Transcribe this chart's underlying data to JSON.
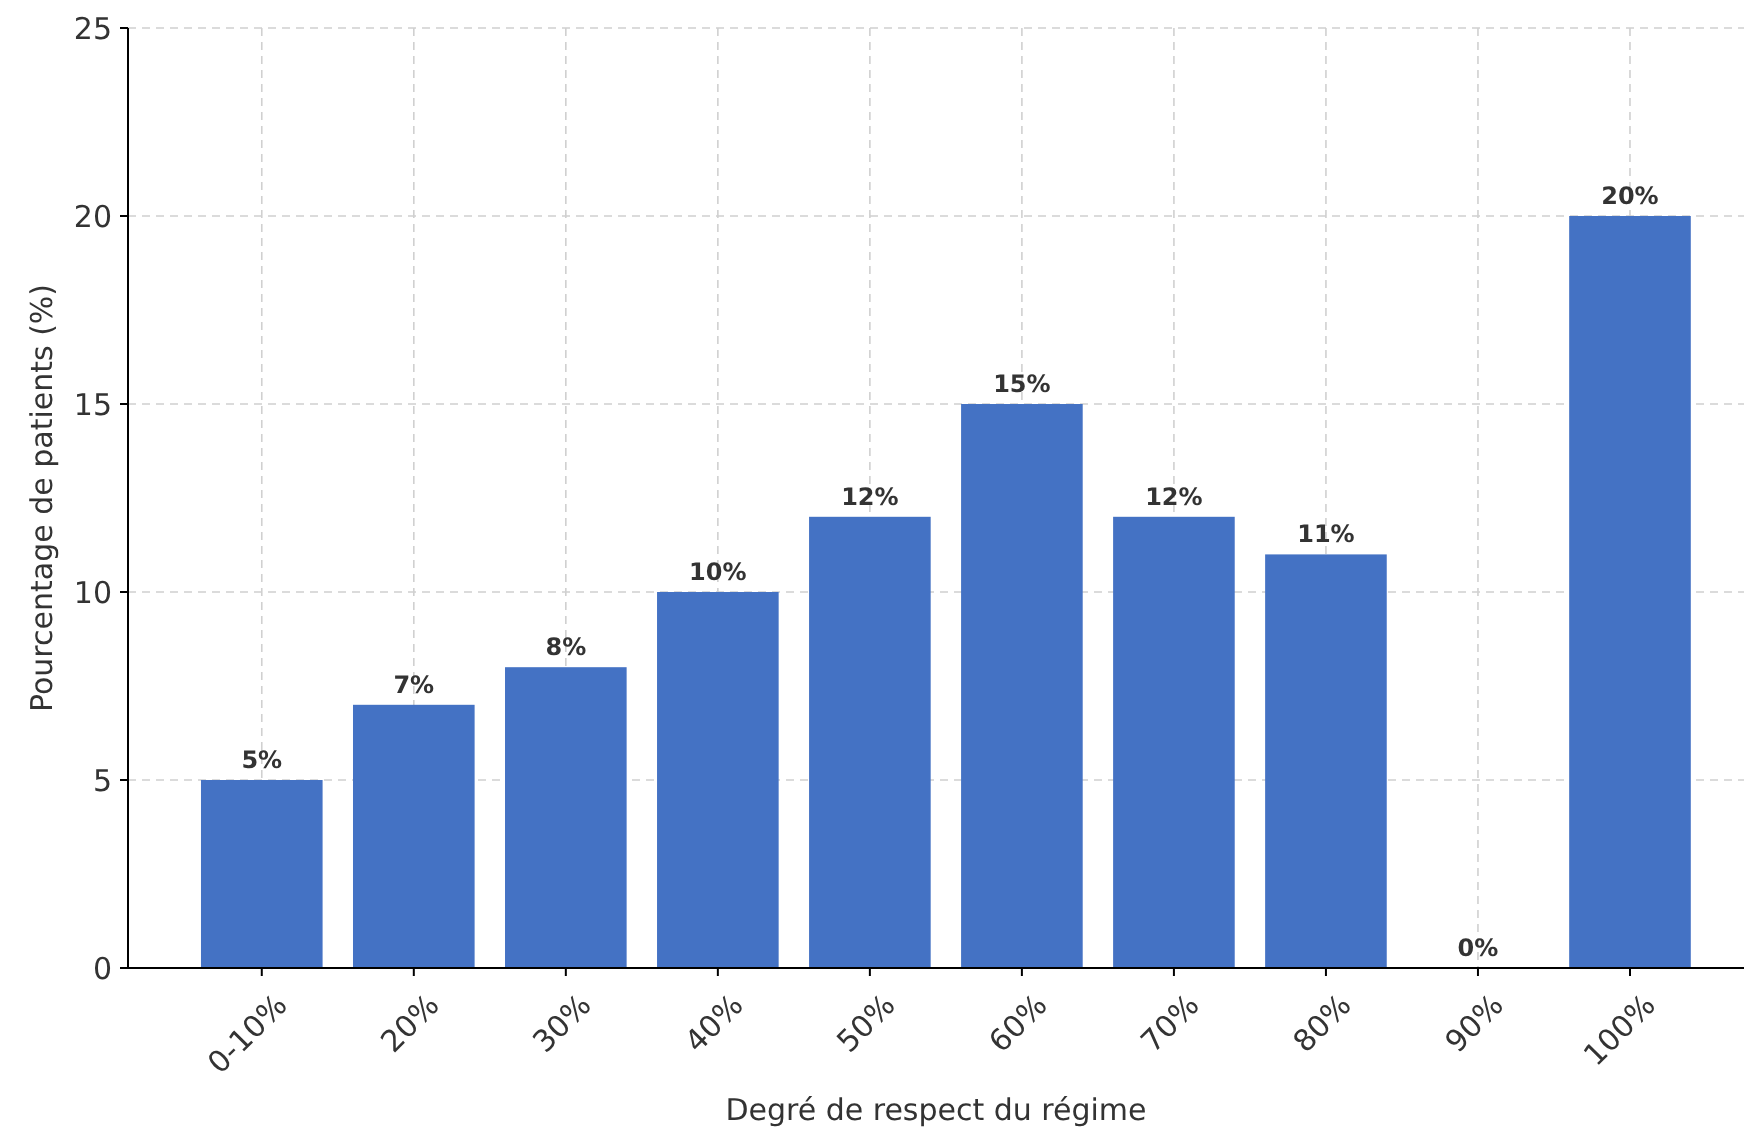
{
  "chart_data": {
    "type": "bar",
    "xlabel": "Degré de respect du régime",
    "ylabel": "Pourcentage de patients (%)",
    "categories": [
      "0-10%",
      "20%",
      "30%",
      "40%",
      "50%",
      "60%",
      "70%",
      "80%",
      "90%",
      "100%"
    ],
    "values": [
      5,
      7,
      8,
      10,
      12,
      15,
      12,
      11,
      0,
      20
    ],
    "value_labels": [
      "5%",
      "7%",
      "8%",
      "10%",
      "12%",
      "15%",
      "12%",
      "11%",
      "0%",
      "20%"
    ],
    "color": "#4472c4",
    "ylim": [
      0,
      25
    ],
    "yticks": [
      0,
      5,
      10,
      15,
      20,
      25
    ],
    "grid": true
  }
}
